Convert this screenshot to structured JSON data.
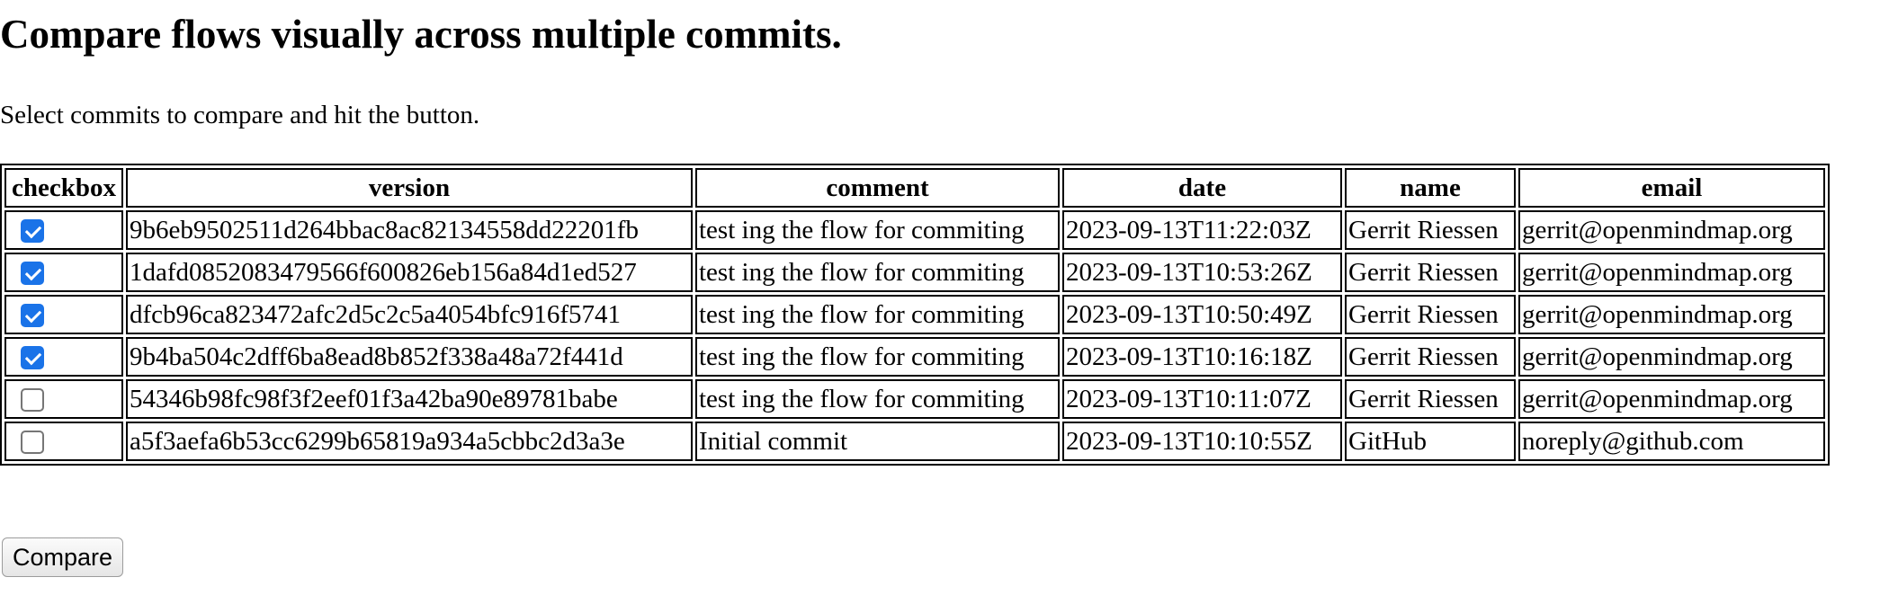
{
  "page": {
    "heading": "Compare flows visually across multiple commits.",
    "intro": "Select commits to compare and hit the button."
  },
  "table": {
    "headers": {
      "checkbox": "checkbox",
      "version": "version",
      "comment": "comment",
      "date": "date",
      "name": "name",
      "email": "email"
    },
    "rows": [
      {
        "checked": true,
        "version": "9b6eb9502511d264bbac8ac82134558dd22201fb",
        "comment": "test ing the flow for commiting",
        "date": "2023-09-13T11:22:03Z",
        "name": "Gerrit Riessen",
        "email": "gerrit@openmindmap.org"
      },
      {
        "checked": true,
        "version": "1dafd0852083479566f600826eb156a84d1ed527",
        "comment": "test ing the flow for commiting",
        "date": "2023-09-13T10:53:26Z",
        "name": "Gerrit Riessen",
        "email": "gerrit@openmindmap.org"
      },
      {
        "checked": true,
        "version": "dfcb96ca823472afc2d5c2c5a4054bfc916f5741",
        "comment": "test ing the flow for commiting",
        "date": "2023-09-13T10:50:49Z",
        "name": "Gerrit Riessen",
        "email": "gerrit@openmindmap.org"
      },
      {
        "checked": true,
        "version": "9b4ba504c2dff6ba8ead8b852f338a48a72f441d",
        "comment": "test ing the flow for commiting",
        "date": "2023-09-13T10:16:18Z",
        "name": "Gerrit Riessen",
        "email": "gerrit@openmindmap.org"
      },
      {
        "checked": false,
        "version": "54346b98fc98f3f2eef01f3a42ba90e89781babe",
        "comment": "test ing the flow for commiting",
        "date": "2023-09-13T10:11:07Z",
        "name": "Gerrit Riessen",
        "email": "gerrit@openmindmap.org"
      },
      {
        "checked": false,
        "version": "a5f3aefa6b53cc6299b65819a934a5cbbc2d3a3e",
        "comment": "Initial commit",
        "date": "2023-09-13T10:10:55Z",
        "name": "GitHub",
        "email": "noreply@github.com"
      }
    ]
  },
  "button": {
    "compare_label": "Compare"
  },
  "colors": {
    "checkbox_checked": "#1a73e8",
    "checkbox_unchecked_border": "#767676",
    "table_border": "#000000"
  }
}
